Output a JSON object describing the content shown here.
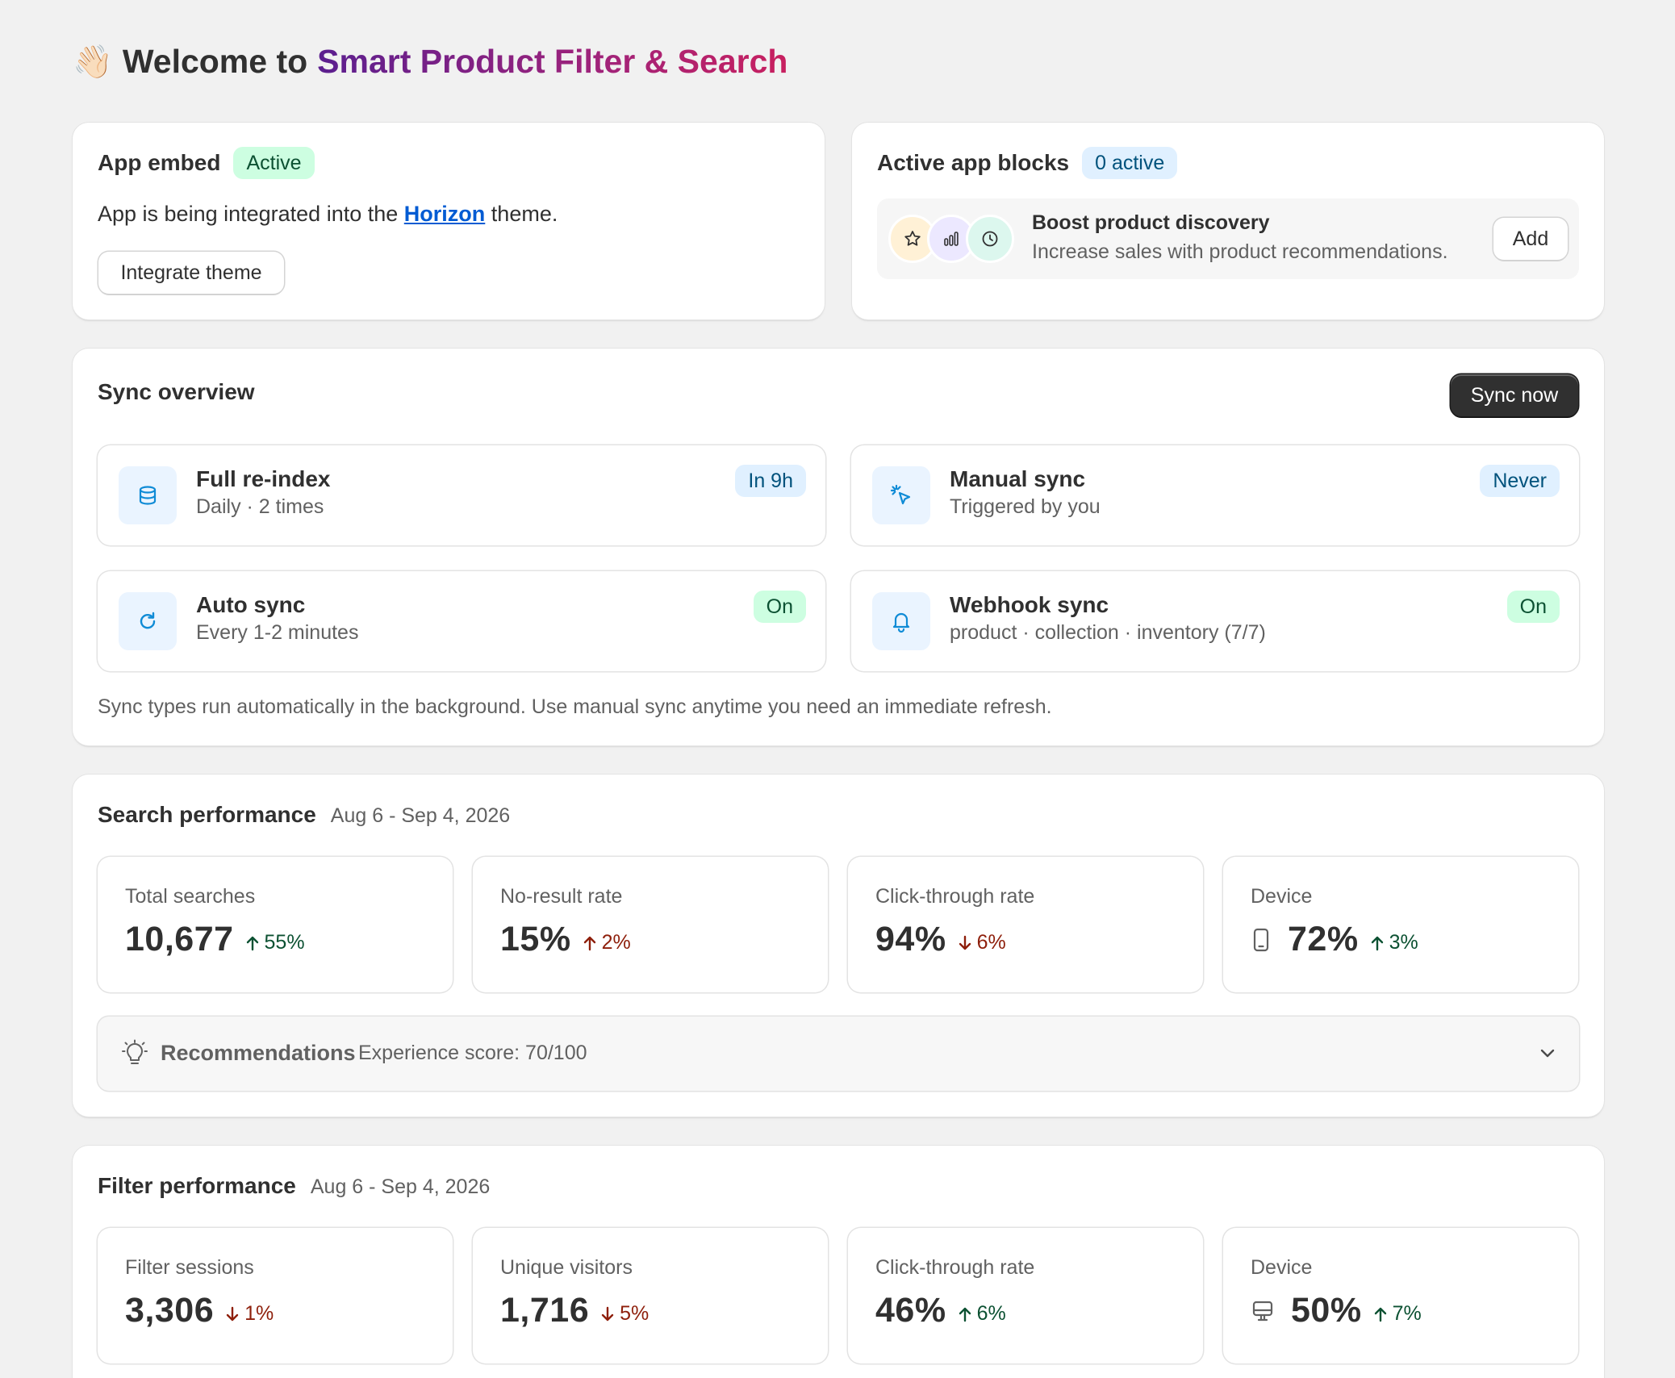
{
  "header": {
    "wave_emoji": "👋🏻",
    "welcome_prefix": "Welcome to",
    "app_name": "Smart Product Filter & Search"
  },
  "app_embed": {
    "title": "App embed",
    "status": "Active",
    "text_before": "App is being integrated into the",
    "theme_link": "Horizon",
    "text_after": "theme.",
    "button": "Integrate theme"
  },
  "app_blocks": {
    "title": "Active app blocks",
    "badge": "0 active",
    "promo": {
      "icons": [
        "star-icon",
        "bar-chart-icon",
        "clock-icon"
      ],
      "title": "Boost product discovery",
      "subtitle": "Increase sales with product recommendations.",
      "button": "Add"
    }
  },
  "sync": {
    "title": "Sync overview",
    "button": "Sync now",
    "tiles": [
      {
        "icon": "database-icon",
        "title": "Full re-index",
        "subtitle": "Daily · 2 times",
        "badge": "In 9h",
        "badge_tone": "blue"
      },
      {
        "icon": "cursor-click-icon",
        "title": "Manual sync",
        "subtitle": "Triggered by you",
        "badge": "Never",
        "badge_tone": "blue"
      },
      {
        "icon": "refresh-icon",
        "title": "Auto sync",
        "subtitle": "Every 1-2 minutes",
        "badge": "On",
        "badge_tone": "green"
      },
      {
        "icon": "bell-icon",
        "title": "Webhook sync",
        "subtitle": "product · collection · inventory (7/7)",
        "badge": "On",
        "badge_tone": "green"
      }
    ],
    "footnote": "Sync types run automatically in the background. Use manual sync anytime you need an immediate refresh."
  },
  "search_perf": {
    "title": "Search performance",
    "date_range": "Aug 6 - Sep 4, 2026",
    "metrics": [
      {
        "label": "Total searches",
        "value": "10,677",
        "delta": "55%",
        "direction": "up"
      },
      {
        "label": "No-result rate",
        "value": "15%",
        "delta": "2%",
        "direction": "up-bad"
      },
      {
        "label": "Click-through rate",
        "value": "94%",
        "delta": "6%",
        "direction": "down"
      },
      {
        "label": "Device",
        "device_icon": "mobile-icon",
        "value": "72%",
        "delta": "3%",
        "direction": "up"
      }
    ],
    "recommendations": {
      "icon": "lightbulb-icon",
      "label": "Recommendations",
      "score": "Experience score: 70/100"
    }
  },
  "filter_perf": {
    "title": "Filter performance",
    "date_range": "Aug 6 - Sep 4, 2026",
    "metrics": [
      {
        "label": "Filter sessions",
        "value": "3,306",
        "delta": "1%",
        "direction": "down"
      },
      {
        "label": "Unique visitors",
        "value": "1,716",
        "delta": "5%",
        "direction": "down"
      },
      {
        "label": "Click-through rate",
        "value": "46%",
        "delta": "6%",
        "direction": "up"
      },
      {
        "label": "Device",
        "device_icon": "desktop-icon",
        "value": "50%",
        "delta": "7%",
        "direction": "up"
      }
    ]
  },
  "colors": {
    "brand_gradient_start": "#5b1f8f",
    "brand_gradient_end": "#c8205f",
    "link": "#005bd3",
    "success_bg": "#cdfee1",
    "info_bg": "#e0f0ff",
    "positive": "#0c5132",
    "negative": "#8e1f0b",
    "icon_blue": "#0f8bd6"
  }
}
